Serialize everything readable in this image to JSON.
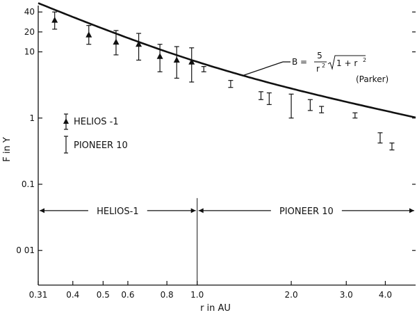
{
  "chart_data": {
    "type": "scatter",
    "xlabel": "r in AU",
    "ylabel": "F in Y",
    "x_scale": "log",
    "y_scale": "log",
    "xlim": [
      0.31,
      5.0
    ],
    "ylim": [
      0.003,
      50
    ],
    "x_ticks": [
      {
        "value": 0.31,
        "label": "0.31"
      },
      {
        "value": 0.4,
        "label": "0.4"
      },
      {
        "value": 0.5,
        "label": "0.5"
      },
      {
        "value": 0.6,
        "label": "0.6"
      },
      {
        "value": 0.8,
        "label": "0.8"
      },
      {
        "value": 1.0,
        "label": "1.0"
      },
      {
        "value": 2.0,
        "label": "2.0"
      },
      {
        "value": 3.0,
        "label": "3.0"
      },
      {
        "value": 4.0,
        "label": "4.0"
      }
    ],
    "y_ticks": [
      {
        "value": 40,
        "label": "40"
      },
      {
        "value": 20,
        "label": "20"
      },
      {
        "value": 10,
        "label": "10"
      },
      {
        "value": 1,
        "label": "1"
      },
      {
        "value": 0.1,
        "label": "0.1"
      },
      {
        "value": 0.01,
        "label": "0 01"
      }
    ],
    "series": [
      {
        "name": "HELIOS -1",
        "marker": "triangle-with-errorbar",
        "points": [
          {
            "x": 0.35,
            "y": 30,
            "ylow": 22,
            "yhigh": 40
          },
          {
            "x": 0.45,
            "y": 18,
            "ylow": 13,
            "yhigh": 25
          },
          {
            "x": 0.55,
            "y": 14,
            "ylow": 9,
            "yhigh": 21
          },
          {
            "x": 0.65,
            "y": 13,
            "ylow": 7.5,
            "yhigh": 19
          },
          {
            "x": 0.76,
            "y": 8.5,
            "ylow": 5,
            "yhigh": 13
          },
          {
            "x": 0.86,
            "y": 7.5,
            "ylow": 4,
            "yhigh": 12
          },
          {
            "x": 0.96,
            "y": 7,
            "ylow": 3.5,
            "yhigh": 11.5
          }
        ]
      },
      {
        "name": "PIONEER 10",
        "marker": "errorbar",
        "points": [
          {
            "x": 1.05,
            "y": 5.5,
            "ylow": 5.0,
            "yhigh": 6.0
          },
          {
            "x": 1.28,
            "y": 3.3,
            "ylow": 2.9,
            "yhigh": 3.7
          },
          {
            "x": 1.6,
            "y": 2.2,
            "ylow": 1.9,
            "yhigh": 2.5
          },
          {
            "x": 1.7,
            "y": 2.0,
            "ylow": 1.6,
            "yhigh": 2.4
          },
          {
            "x": 2.0,
            "y": 1.6,
            "ylow": 1.0,
            "yhigh": 2.3
          },
          {
            "x": 2.3,
            "y": 1.6,
            "ylow": 1.3,
            "yhigh": 1.9
          },
          {
            "x": 2.5,
            "y": 1.35,
            "ylow": 1.2,
            "yhigh": 1.5
          },
          {
            "x": 3.2,
            "y": 1.08,
            "ylow": 1.0,
            "yhigh": 1.2
          },
          {
            "x": 3.85,
            "y": 0.5,
            "ylow": 0.42,
            "yhigh": 0.6
          },
          {
            "x": 4.2,
            "y": 0.38,
            "ylow": 0.33,
            "yhigh": 0.42
          }
        ]
      }
    ],
    "curve": {
      "label_formula": "B = 5 / (r^2) √(1 + r^2)",
      "label_source": "(Parker)",
      "formula_prefix": "B =",
      "formula_num": "5",
      "formula_den": "r",
      "formula_den_exp": "2",
      "formula_root_body": "1 + r",
      "formula_root_exp": "2",
      "annotation_at_x": 1.4,
      "equation": {
        "k": 5,
        "type": "parker"
      }
    },
    "vertical_line_at_x": 1.0,
    "region_labels": [
      {
        "text": "HELIOS-1",
        "x_from": 0.31,
        "x_to": 1.0
      },
      {
        "text": "PIONEER 10",
        "x_from": 1.0,
        "x_to": 5.0
      }
    ],
    "region_arrow_y": 0.04,
    "legend": [
      {
        "label": "HELIOS -1",
        "marker": "triangle"
      },
      {
        "label": "PIONEER 10",
        "marker": "errorbar"
      }
    ]
  }
}
